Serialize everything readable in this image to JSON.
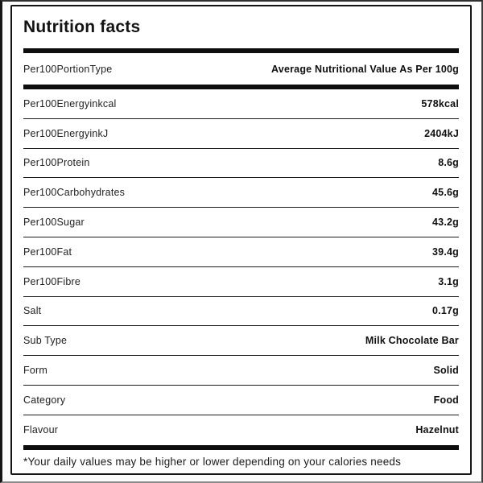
{
  "card": {
    "title": "Nutrition facts",
    "header": {
      "label": "Per100PortionType",
      "value": "Average Nutritional Value As Per 100g"
    },
    "rows": [
      {
        "label": "Per100Energyinkcal",
        "value": "578kcal"
      },
      {
        "label": "Per100EnergyinkJ",
        "value": "2404kJ"
      },
      {
        "label": "Per100Protein",
        "value": "8.6g"
      },
      {
        "label": "Per100Carbohydrates",
        "value": "45.6g"
      },
      {
        "label": "Per100Sugar",
        "value": "43.2g"
      },
      {
        "label": "Per100Fat",
        "value": "39.4g"
      },
      {
        "label": "Per100Fibre",
        "value": "3.1g"
      },
      {
        "label": "Salt",
        "value": "0.17g"
      },
      {
        "label": "Sub Type",
        "value": "Milk Chocolate Bar"
      },
      {
        "label": "Form",
        "value": "Solid"
      },
      {
        "label": "Category",
        "value": "Food"
      },
      {
        "label": "Flavour",
        "value": "Hazelnut"
      }
    ],
    "footnote": "*Your daily values may be higher or lower depending on your calories needs",
    "colors": {
      "text": "#1a1a1a",
      "bar": "#0e0e0e",
      "divider": "#1c1c1c",
      "card_border": "#141414",
      "card_bg": "#ffffff"
    }
  }
}
